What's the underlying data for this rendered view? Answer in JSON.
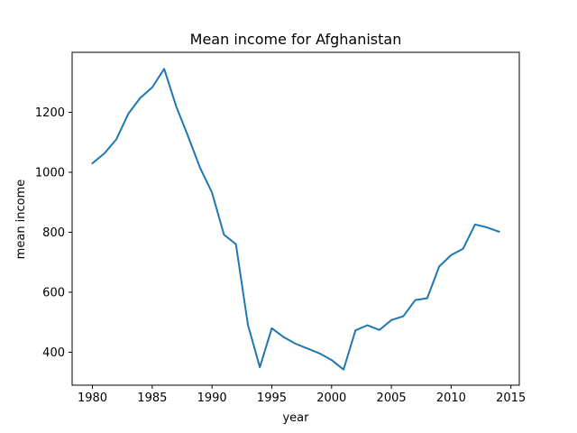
{
  "chart_data": {
    "type": "line",
    "title": "Mean income for Afghanistan",
    "xlabel": "year",
    "ylabel": "mean income",
    "xlim": [
      1978.3,
      2015.7
    ],
    "ylim": [
      290,
      1400
    ],
    "xticks": [
      1980,
      1985,
      1990,
      1995,
      2000,
      2005,
      2010,
      2015
    ],
    "yticks": [
      400,
      600,
      800,
      1000,
      1200
    ],
    "grid": false,
    "line_color": "#1f77b4",
    "series": [
      {
        "x": [
          1980,
          1981,
          1982,
          1983,
          1984,
          1985,
          1986,
          1987,
          1988,
          1989,
          1990,
          1991,
          1992,
          1993,
          1994,
          1995,
          1996,
          1997,
          1998,
          1999,
          2000,
          2001,
          2002,
          2003,
          2004,
          2005,
          2006,
          2007,
          2008,
          2009,
          2010,
          2011,
          2012,
          2013,
          2014
        ],
        "values": [
          1030,
          1063,
          1110,
          1195,
          1248,
          1283,
          1345,
          1220,
          1120,
          1015,
          932,
          792,
          760,
          492,
          350,
          480,
          450,
          428,
          412,
          396,
          374,
          342,
          473,
          490,
          474,
          507,
          520,
          574,
          580,
          686,
          724,
          745,
          826,
          816,
          802
        ]
      }
    ]
  }
}
